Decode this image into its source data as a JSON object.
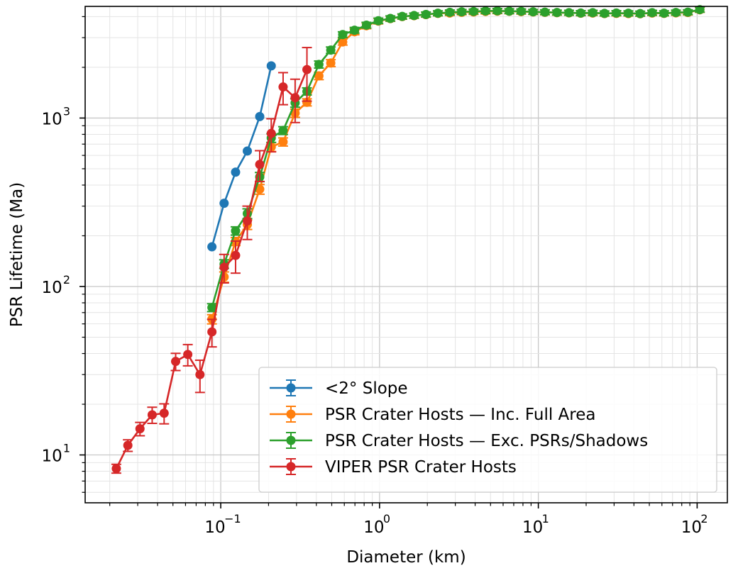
{
  "chart_data": {
    "type": "line",
    "title": "",
    "xlabel": "Diameter (km)",
    "ylabel": "PSR Lifetime (Ma)",
    "xscale": "log",
    "yscale": "log",
    "xlim": [
      0.014,
      155
    ],
    "ylim": [
      5.2,
      4600
    ],
    "x_ticks": [
      {
        "value": 0.1,
        "base": "10",
        "exp": "−1"
      },
      {
        "value": 1,
        "base": "10",
        "exp": "0"
      },
      {
        "value": 10,
        "base": "10",
        "exp": "1"
      },
      {
        "value": 100,
        "base": "10",
        "exp": "2"
      }
    ],
    "y_ticks": [
      {
        "value": 10,
        "base": "10",
        "exp": "1"
      },
      {
        "value": 100,
        "base": "10",
        "exp": "2"
      },
      {
        "value": 1000,
        "base": "10",
        "exp": "3"
      }
    ],
    "grid": true,
    "legend_position": "lower-right",
    "series": [
      {
        "name": "<2° Slope",
        "color": "#1f77b4",
        "x": [
          0.088,
          0.105,
          0.124,
          0.147,
          0.176,
          0.208
        ],
        "y": [
          172,
          312,
          477,
          637,
          1020,
          2040
        ]
      },
      {
        "name": "PSR Crater Hosts — Inc. Full Area",
        "color": "#ff7f0e",
        "x": [
          0.088,
          0.105,
          0.124,
          0.147,
          0.176,
          0.208,
          0.247,
          0.294,
          0.349,
          0.415,
          0.493,
          0.586,
          0.696,
          0.827,
          0.983,
          1.17,
          1.39,
          1.65,
          1.96,
          2.33,
          2.77,
          3.29,
          3.91,
          4.65,
          5.52,
          6.56,
          7.8,
          9.27,
          11.0,
          13.1,
          15.6,
          18.5,
          22.0,
          26.1,
          31.0,
          36.9,
          43.8,
          52.1,
          61.9,
          73.5,
          87.4,
          104
        ],
        "y": [
          64,
          114,
          185,
          233,
          378,
          673,
          722,
          1070,
          1240,
          1780,
          2120,
          2830,
          3250,
          3530,
          3760,
          3890,
          4000,
          4050,
          4110,
          4180,
          4200,
          4240,
          4260,
          4290,
          4310,
          4300,
          4280,
          4260,
          4240,
          4220,
          4210,
          4190,
          4200,
          4170,
          4180,
          4170,
          4160,
          4200,
          4180,
          4210,
          4230,
          4390
        ],
        "err": [
          4,
          8,
          10,
          15,
          25,
          40,
          40,
          60,
          60,
          90,
          100,
          120,
          130,
          140,
          140,
          140,
          140,
          140,
          140,
          140,
          140,
          140,
          140,
          140,
          140,
          140,
          140,
          140,
          140,
          140,
          140,
          140,
          140,
          140,
          140,
          140,
          140,
          140,
          140,
          140,
          140,
          150
        ]
      },
      {
        "name": "PSR Crater Hosts — Exc. PSRs/Shadows",
        "color": "#2ca02c",
        "x": [
          0.088,
          0.105,
          0.124,
          0.147,
          0.176,
          0.208,
          0.247,
          0.294,
          0.349,
          0.415,
          0.493,
          0.586,
          0.696,
          0.827,
          0.983,
          1.17,
          1.39,
          1.65,
          1.96,
          2.33,
          2.77,
          3.29,
          3.91,
          4.65,
          5.52,
          6.56,
          7.8,
          9.27,
          11.0,
          13.1,
          15.6,
          18.5,
          22.0,
          26.1,
          31.0,
          36.9,
          43.8,
          52.1,
          61.9,
          73.5,
          87.4,
          104
        ],
        "y": [
          75,
          136,
          214,
          271,
          447,
          762,
          843,
          1230,
          1440,
          2080,
          2530,
          3130,
          3320,
          3560,
          3780,
          3900,
          4010,
          4060,
          4120,
          4190,
          4240,
          4270,
          4290,
          4320,
          4330,
          4310,
          4300,
          4270,
          4250,
          4230,
          4220,
          4200,
          4220,
          4180,
          4200,
          4190,
          4170,
          4220,
          4190,
          4230,
          4250,
          4400
        ],
        "err": [
          4,
          8,
          12,
          18,
          28,
          45,
          45,
          70,
          70,
          100,
          110,
          120,
          130,
          140,
          140,
          140,
          140,
          140,
          140,
          140,
          140,
          140,
          140,
          140,
          140,
          140,
          140,
          140,
          140,
          140,
          140,
          140,
          140,
          140,
          140,
          140,
          140,
          140,
          140,
          140,
          140,
          150
        ]
      },
      {
        "name": "VIPER PSR Crater Hosts",
        "color": "#d62728",
        "x": [
          0.022,
          0.026,
          0.031,
          0.037,
          0.044,
          0.052,
          0.062,
          0.074,
          0.088,
          0.105,
          0.124,
          0.147,
          0.176,
          0.208,
          0.247,
          0.294,
          0.349
        ],
        "y": [
          8.3,
          11.4,
          14.3,
          17.3,
          17.7,
          35.9,
          39.5,
          30.0,
          53.8,
          130,
          153,
          245,
          530,
          810,
          1530,
          1320,
          1940
        ],
        "err": [
          0.5,
          0.9,
          1.3,
          1.9,
          2.4,
          4.2,
          5.7,
          6.5,
          10,
          25,
          33,
          55,
          110,
          180,
          330,
          380,
          680
        ]
      }
    ]
  }
}
